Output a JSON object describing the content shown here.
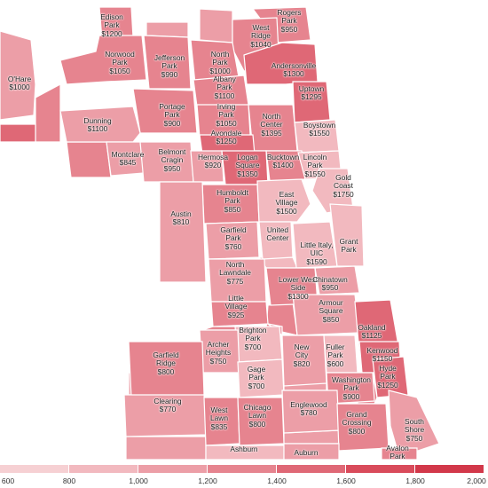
{
  "colors": {
    "water": "#ffffff",
    "border": "#ffffff",
    "scale": [
      "#f6d0d3",
      "#f2b9bf",
      "#ec9ea7",
      "#e6848f",
      "#df6876",
      "#d94b5b",
      "#d2384a"
    ]
  },
  "legend": {
    "min": 600,
    "max": 2000,
    "ticks": [
      "600",
      "800",
      "1,000",
      "1,200",
      "1,400",
      "1,600",
      "1,800",
      "2,000"
    ]
  },
  "neighborhoods": [
    {
      "name": "Rogers Park",
      "value": "$950"
    },
    {
      "name": "Edison Park",
      "value": "$1200"
    },
    {
      "name": "West Ridge",
      "value": "$1040"
    },
    {
      "name": "Norwood Park",
      "value": "$1050"
    },
    {
      "name": "Jefferson Park",
      "value": "$990"
    },
    {
      "name": "North Park",
      "value": "$1000"
    },
    {
      "name": "Andersonville",
      "value": "$1300"
    },
    {
      "name": "O'Hare",
      "value": "$1000"
    },
    {
      "name": "Albany Park",
      "value": "$1100"
    },
    {
      "name": "Uptown",
      "value": "$1295"
    },
    {
      "name": "Portage Park",
      "value": "$900"
    },
    {
      "name": "Irving Park",
      "value": "$1050"
    },
    {
      "name": "North Center",
      "value": "$1395"
    },
    {
      "name": "Dunning",
      "value": "$1100"
    },
    {
      "name": "Boystown",
      "value": "$1550"
    },
    {
      "name": "Avondale",
      "value": "$1250"
    },
    {
      "name": "Montclare",
      "value": "$845"
    },
    {
      "name": "Belmont Cragin",
      "value": "$950"
    },
    {
      "name": "Hermosa",
      "value": "$920"
    },
    {
      "name": "Logan Square",
      "value": "$1350"
    },
    {
      "name": "Bucktown",
      "value": "$1400"
    },
    {
      "name": "Lincoln Park",
      "value": "$1550"
    },
    {
      "name": "Gold Coast",
      "value": "$1750"
    },
    {
      "name": "Humboldt Park",
      "value": "$850"
    },
    {
      "name": "East Village",
      "value": "$1500"
    },
    {
      "name": "Austin",
      "value": "$810"
    },
    {
      "name": "Garfield Park",
      "value": "$760"
    },
    {
      "name": "United Center",
      "value": ""
    },
    {
      "name": "Little Italy, UIC",
      "value": "$1590"
    },
    {
      "name": "Grant Park",
      "value": ""
    },
    {
      "name": "North Lawndale",
      "value": "$775"
    },
    {
      "name": "Lower West Side",
      "value": "$1300"
    },
    {
      "name": "Chinatown",
      "value": "$950"
    },
    {
      "name": "Little Village",
      "value": "$925"
    },
    {
      "name": "Armour Square",
      "value": "$850"
    },
    {
      "name": "Brighton Park",
      "value": "$700"
    },
    {
      "name": "Oakland",
      "value": "$1125"
    },
    {
      "name": "Archer Heights",
      "value": "$750"
    },
    {
      "name": "New City",
      "value": "$820"
    },
    {
      "name": "Fuller Park",
      "value": "$600"
    },
    {
      "name": "Kenwood",
      "value": "$1150"
    },
    {
      "name": "Garfield Ridge",
      "value": "$800"
    },
    {
      "name": "Gage Park",
      "value": "$700"
    },
    {
      "name": "Hyde Park",
      "value": "$1250"
    },
    {
      "name": "Washington Park",
      "value": "$900"
    },
    {
      "name": "Clearing",
      "value": "$770"
    },
    {
      "name": "West Lawn",
      "value": "$835"
    },
    {
      "name": "Chicago Lawn",
      "value": "$800"
    },
    {
      "name": "Englewood",
      "value": "$780"
    },
    {
      "name": "Grand Crossing",
      "value": "$800"
    },
    {
      "name": "South Shore",
      "value": "$750"
    },
    {
      "name": "Ashburn",
      "value": ""
    },
    {
      "name": "Auburn",
      "value": ""
    },
    {
      "name": "Avalon Park",
      "value": ""
    }
  ]
}
